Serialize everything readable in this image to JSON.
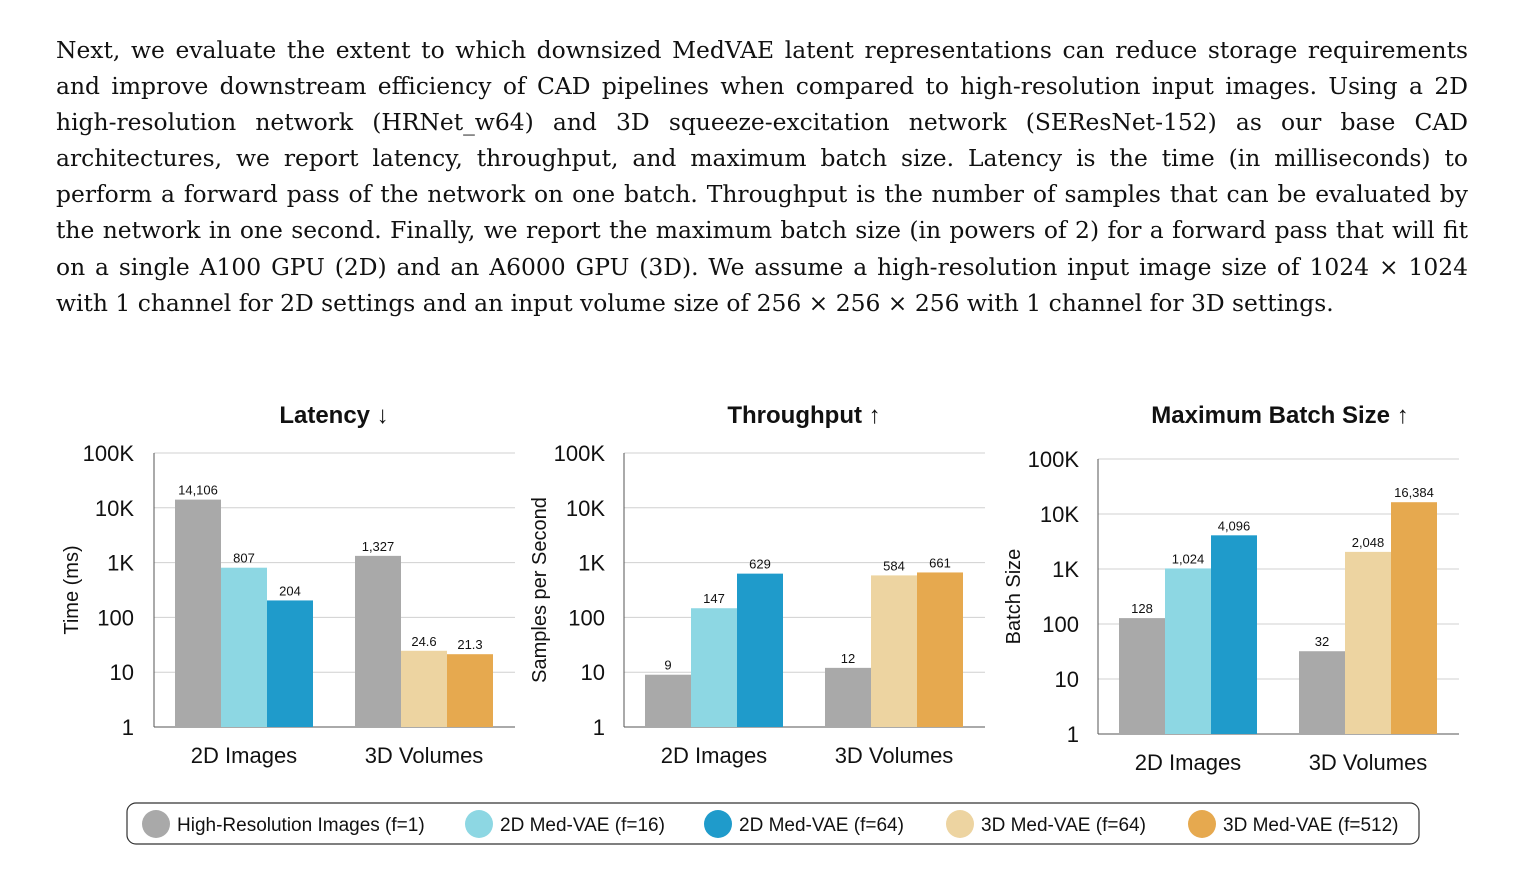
{
  "paragraph": "Next, we evaluate the extent to which downsized MedVAE latent representations can reduce storage requirements and improve downstream efficiency of CAD pipelines when compared to high-resolution input images. Using a 2D high-resolution network (HRNet_w64) and 3D squeeze-excitation network (SEResNet-152) as our base CAD architectures, we report latency, throughput, and maximum batch size. Latency is the time (in milliseconds) to perform a forward pass of the network on one batch. Throughput is the number of samples that can be evaluated by the network in one second. Finally, we report the maximum batch size (in powers of 2) for a forward pass that will fit on a single A100 GPU (2D) and an A6000 GPU (3D). We assume a high-resolution input image size of 1024 × 1024 with 1 channel for 2D settings and an input volume size of 256 × 256 × 256 with 1 channel for 3D settings.",
  "colors": {
    "hr": "#a9a9a9",
    "vae2d16": "#8dd7e3",
    "vae2d64": "#1f9bcb",
    "vae3d64": "#edd4a1",
    "vae3d512": "#e6a94f"
  },
  "legend": [
    {
      "label": "High-Resolution Images (f=1)",
      "color": "#a9a9a9"
    },
    {
      "label": "2D Med-VAE (f=16)",
      "color": "#8dd7e3"
    },
    {
      "label": "2D Med-VAE (f=64)",
      "color": "#1f9bcb"
    },
    {
      "label": "3D Med-VAE (f=64)",
      "color": "#edd4a1"
    },
    {
      "label": "3D Med-VAE (f=512)",
      "color": "#e6a94f"
    }
  ],
  "chart_data": [
    {
      "type": "bar",
      "title": "Latency ↓",
      "ylabel": "Time (ms)",
      "yscale": "log",
      "ylim": [
        1,
        100000
      ],
      "yticks": [
        "1",
        "10",
        "100",
        "1K",
        "10K",
        "100K"
      ],
      "grid": true,
      "legend_position": "bottom",
      "groups": [
        {
          "label": "2D Images",
          "bars": [
            {
              "series": "High-Resolution Images (f=1)",
              "value": 14106,
              "label": "14,106",
              "color": "#a9a9a9"
            },
            {
              "series": "2D Med-VAE (f=16)",
              "value": 807,
              "label": "807",
              "color": "#8dd7e3"
            },
            {
              "series": "2D Med-VAE (f=64)",
              "value": 204,
              "label": "204",
              "color": "#1f9bcb"
            }
          ]
        },
        {
          "label": "3D Volumes",
          "bars": [
            {
              "series": "High-Resolution Images (f=1)",
              "value": 1327,
              "label": "1,327",
              "color": "#a9a9a9"
            },
            {
              "series": "3D Med-VAE (f=64)",
              "value": 24.6,
              "label": "24.6",
              "color": "#edd4a1"
            },
            {
              "series": "3D Med-VAE (f=512)",
              "value": 21.3,
              "label": "21.3",
              "color": "#e6a94f"
            }
          ]
        }
      ]
    },
    {
      "type": "bar",
      "title": "Throughput ↑",
      "ylabel": "Samples per Second",
      "yscale": "log",
      "ylim": [
        1,
        100000
      ],
      "yticks": [
        "1",
        "10",
        "100",
        "1K",
        "10K",
        "100K"
      ],
      "grid": true,
      "legend_position": "bottom",
      "groups": [
        {
          "label": "2D Images",
          "bars": [
            {
              "series": "High-Resolution Images (f=1)",
              "value": 9,
              "label": "9",
              "color": "#a9a9a9"
            },
            {
              "series": "2D Med-VAE (f=16)",
              "value": 147,
              "label": "147",
              "color": "#8dd7e3"
            },
            {
              "series": "2D Med-VAE (f=64)",
              "value": 629,
              "label": "629",
              "color": "#1f9bcb"
            }
          ]
        },
        {
          "label": "3D Volumes",
          "bars": [
            {
              "series": "High-Resolution Images (f=1)",
              "value": 12,
              "label": "12",
              "color": "#a9a9a9"
            },
            {
              "series": "3D Med-VAE (f=64)",
              "value": 584,
              "label": "584",
              "color": "#edd4a1"
            },
            {
              "series": "3D Med-VAE (f=512)",
              "value": 661,
              "label": "661",
              "color": "#e6a94f"
            }
          ]
        }
      ]
    },
    {
      "type": "bar",
      "title": "Maximum Batch Size ↑",
      "ylabel": "Batch Size",
      "yscale": "log",
      "ylim": [
        1,
        100000
      ],
      "yticks": [
        "1",
        "10",
        "100",
        "1K",
        "10K",
        "100K"
      ],
      "grid": true,
      "legend_position": "bottom",
      "groups": [
        {
          "label": "2D Images",
          "bars": [
            {
              "series": "High-Resolution Images (f=1)",
              "value": 128,
              "label": "128",
              "color": "#a9a9a9"
            },
            {
              "series": "2D Med-VAE (f=16)",
              "value": 1024,
              "label": "1,024",
              "color": "#8dd7e3"
            },
            {
              "series": "2D Med-VAE (f=64)",
              "value": 4096,
              "label": "4,096",
              "color": "#1f9bcb"
            }
          ]
        },
        {
          "label": "3D Volumes",
          "bars": [
            {
              "series": "High-Resolution Images (f=1)",
              "value": 32,
              "label": "32",
              "color": "#a9a9a9"
            },
            {
              "series": "3D Med-VAE (f=64)",
              "value": 2048,
              "label": "2,048",
              "color": "#edd4a1"
            },
            {
              "series": "3D Med-VAE (f=512)",
              "value": 16384,
              "label": "16,384",
              "color": "#e6a94f"
            }
          ]
        }
      ]
    }
  ]
}
